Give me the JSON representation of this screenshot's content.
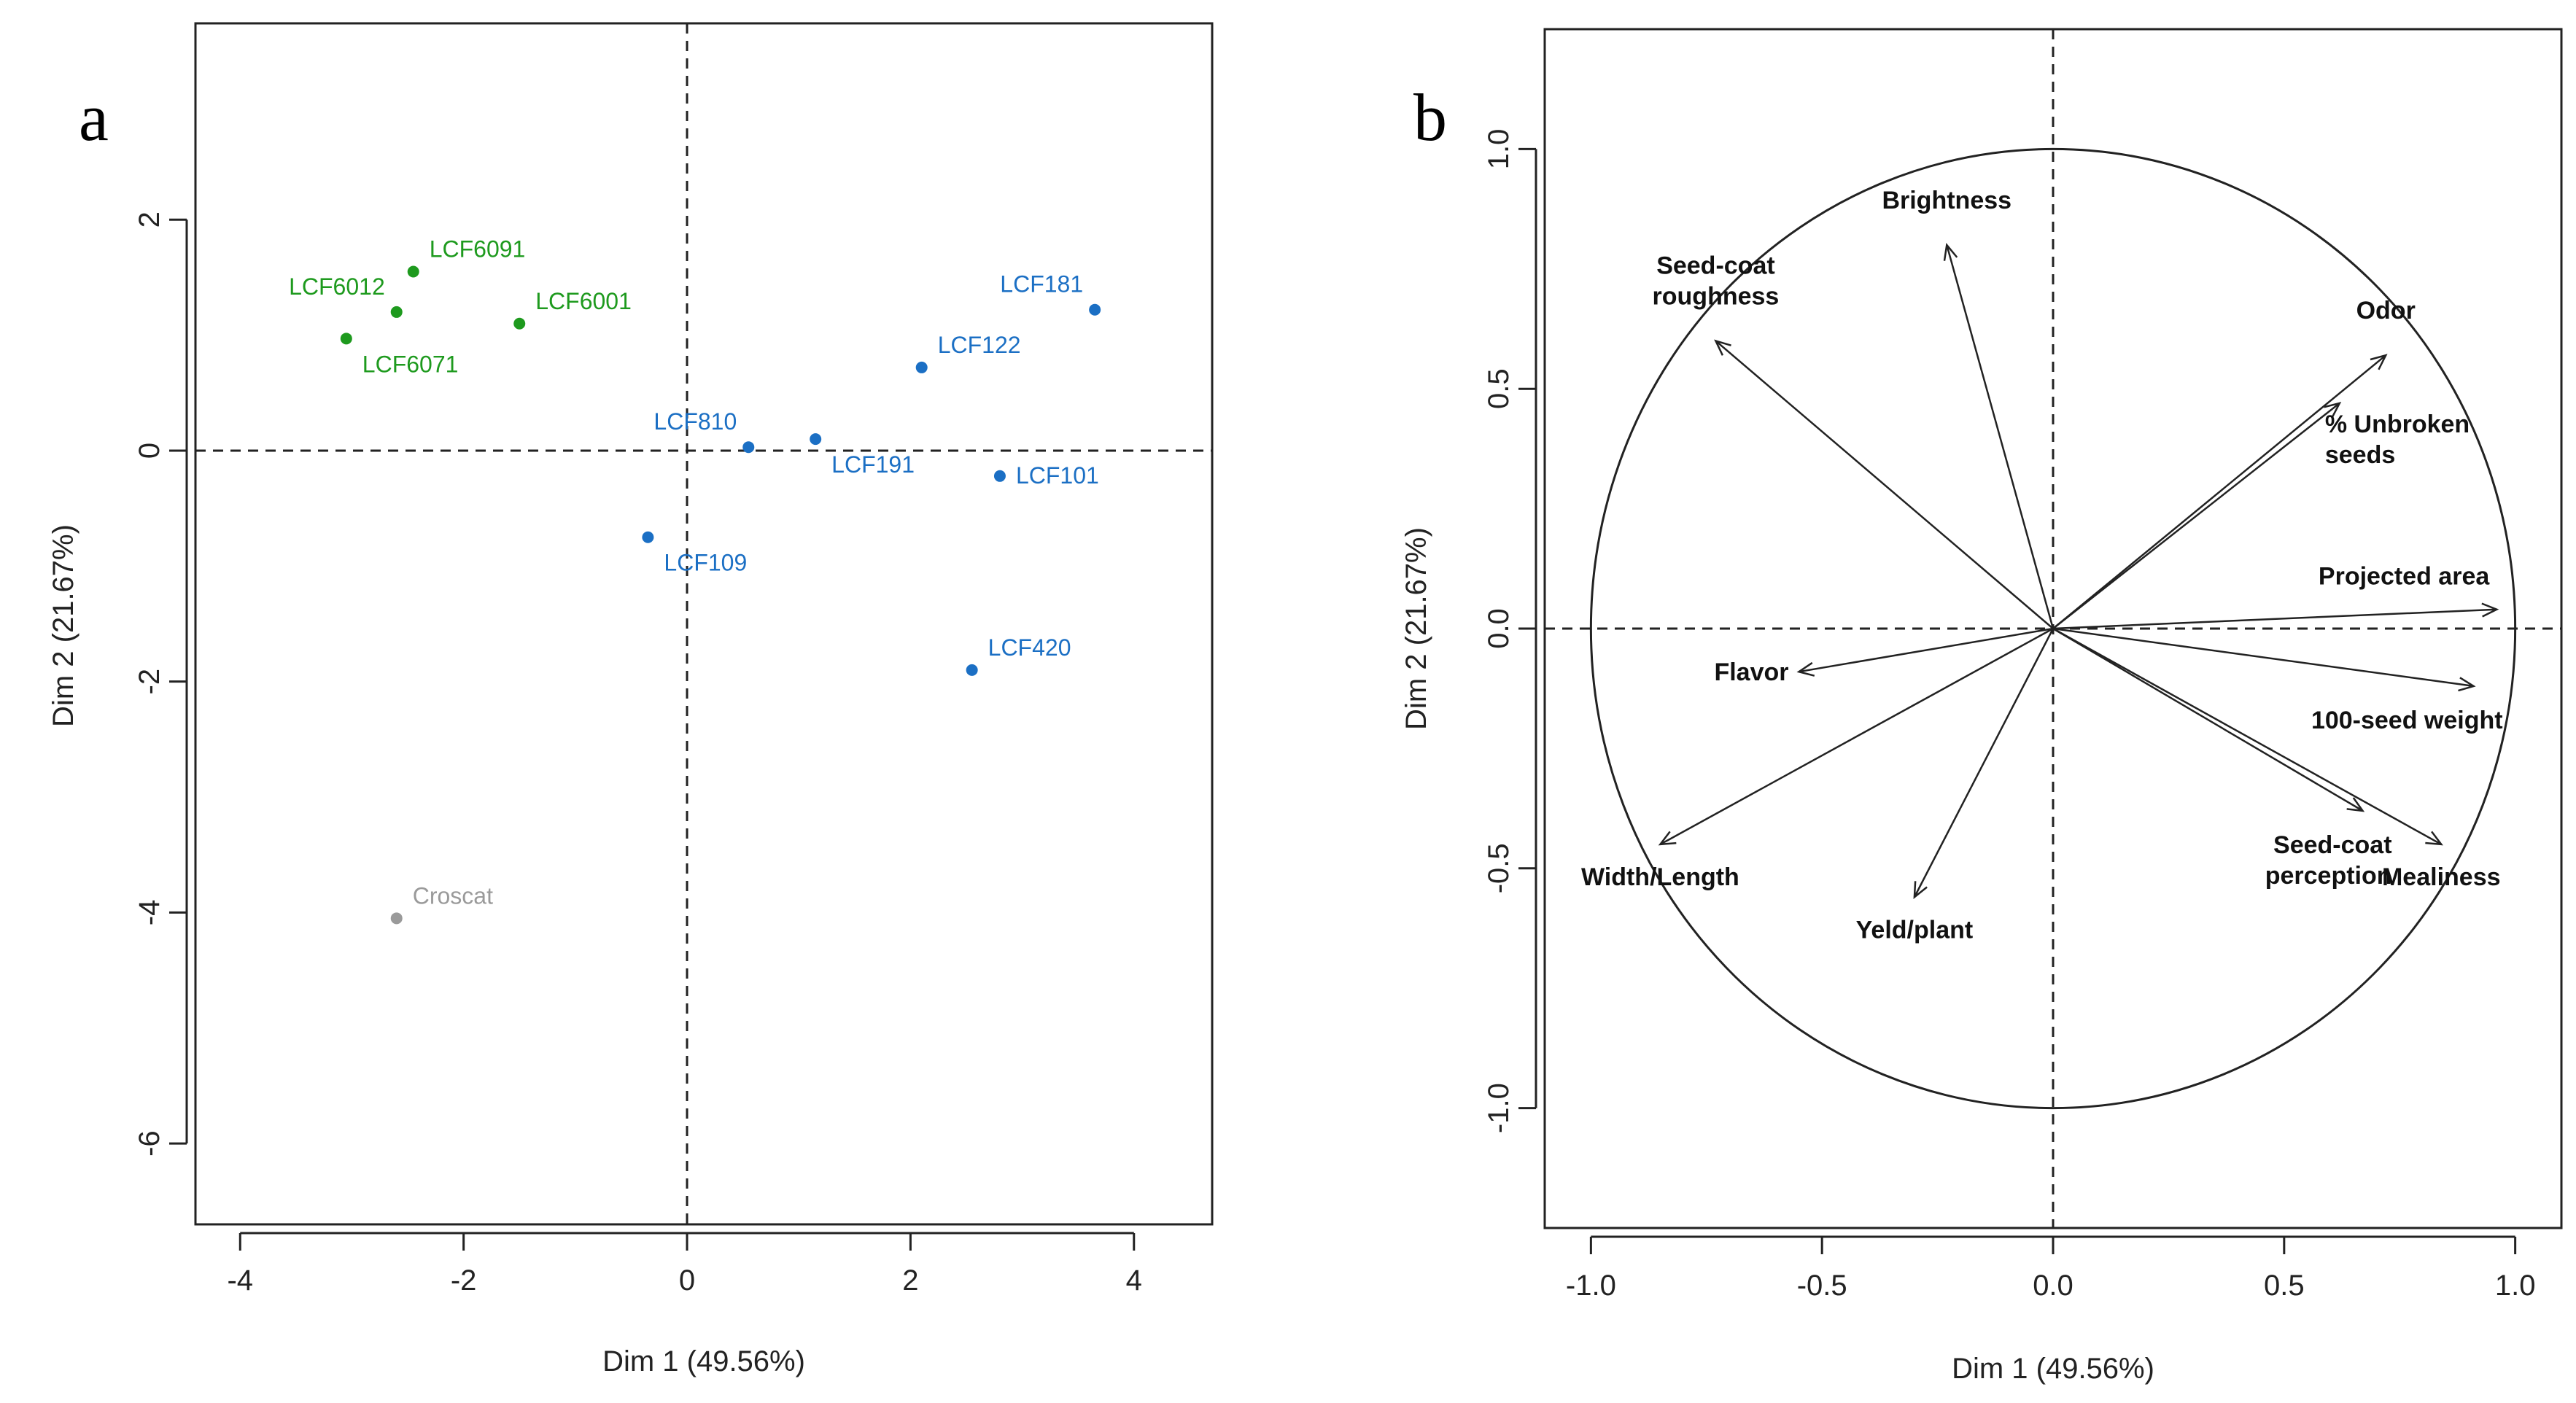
{
  "chart_data": [
    {
      "panel": "a",
      "type": "scatter",
      "title": "",
      "xlabel": "Dim 1 (49.56%)",
      "ylabel": "Dim 2 (21.67%)",
      "xlim": [
        -4.4,
        4.7
      ],
      "ylim": [
        -6.7,
        3.7
      ],
      "xticks": [
        -4,
        -2,
        0,
        2,
        4
      ],
      "yticks": [
        2,
        0,
        -2,
        -4,
        -6
      ],
      "colors": {
        "green": "#1e9a1e",
        "blue": "#1b6fc4",
        "gray": "#9a9a9a"
      },
      "points": [
        {
          "label": "LCF6091",
          "x": -2.45,
          "y": 1.55,
          "color": "#1e9a1e",
          "pos": "upper-right"
        },
        {
          "label": "LCF6012",
          "x": -2.6,
          "y": 1.2,
          "color": "#1e9a1e",
          "pos": "upper-left"
        },
        {
          "label": "LCF6001",
          "x": -1.5,
          "y": 1.1,
          "color": "#1e9a1e",
          "pos": "upper-right"
        },
        {
          "label": "LCF6071",
          "x": -3.05,
          "y": 0.97,
          "color": "#1e9a1e",
          "pos": "lower-right"
        },
        {
          "label": "LCF181",
          "x": 3.65,
          "y": 1.22,
          "color": "#1b6fc4",
          "pos": "upper-left"
        },
        {
          "label": "LCF122",
          "x": 2.1,
          "y": 0.72,
          "color": "#1b6fc4",
          "pos": "upper-right"
        },
        {
          "label": "LCF810",
          "x": 0.55,
          "y": 0.03,
          "color": "#1b6fc4",
          "pos": "upper-left"
        },
        {
          "label": "LCF191",
          "x": 1.15,
          "y": 0.1,
          "color": "#1b6fc4",
          "pos": "lower-right"
        },
        {
          "label": "LCF101",
          "x": 2.8,
          "y": -0.22,
          "color": "#1b6fc4",
          "pos": "right"
        },
        {
          "label": "LCF109",
          "x": -0.35,
          "y": -0.75,
          "color": "#1b6fc4",
          "pos": "lower-right"
        },
        {
          "label": "LCF420",
          "x": 2.55,
          "y": -1.9,
          "color": "#1b6fc4",
          "pos": "upper-right"
        },
        {
          "label": "Croscat",
          "x": -2.6,
          "y": -4.05,
          "color": "#9a9a9a",
          "pos": "upper-right"
        }
      ]
    },
    {
      "panel": "b",
      "type": "biplot",
      "title": "",
      "xlabel": "Dim 1 (49.56%)",
      "ylabel": "Dim 2 (21.67%)",
      "xlim": [
        -1.1,
        1.1
      ],
      "ylim": [
        -1.25,
        1.25
      ],
      "xticks": [
        -1.0,
        -0.5,
        0.0,
        0.5,
        1.0
      ],
      "xtick_labels": [
        "-1.0",
        "-0.5",
        "0.0",
        "0.5",
        "1.0"
      ],
      "yticks": [
        1.0,
        0.5,
        0.0,
        -0.5,
        -1.0
      ],
      "ytick_labels": [
        "1.0",
        "0.5",
        "0.0",
        "-0.5",
        "-1.0"
      ],
      "circle_radius": 1.0,
      "vectors": [
        {
          "name": "Brightness",
          "lines": [
            "Brightness"
          ],
          "x": -0.23,
          "y": 0.8,
          "label_pos": "above"
        },
        {
          "name": "Seed-coat roughness",
          "lines": [
            "Seed-coat",
            "roughness"
          ],
          "x": -0.73,
          "y": 0.6,
          "label_pos": "above"
        },
        {
          "name": "Odor",
          "lines": [
            "Odor"
          ],
          "x": 0.72,
          "y": 0.57,
          "label_pos": "above"
        },
        {
          "name": "% Unbroken seeds",
          "lines": [
            "% Unbroken",
            "seeds"
          ],
          "x": 0.62,
          "y": 0.47,
          "label_pos": "right-below"
        },
        {
          "name": "Projected area",
          "lines": [
            "Projected area"
          ],
          "x": 0.96,
          "y": 0.04,
          "label_pos": "above-left"
        },
        {
          "name": "100-seed weight",
          "lines": [
            "100-seed weight"
          ],
          "x": 0.91,
          "y": -0.12,
          "label_pos": "below-left"
        },
        {
          "name": "Flavor",
          "lines": [
            "Flavor"
          ],
          "x": -0.55,
          "y": -0.09,
          "label_pos": "left"
        },
        {
          "name": "Width/Length",
          "lines": [
            "Width/Length"
          ],
          "x": -0.85,
          "y": -0.45,
          "label_pos": "below"
        },
        {
          "name": "Yeld/plant",
          "lines": [
            "Yeld/plant"
          ],
          "x": -0.3,
          "y": -0.56,
          "label_pos": "below"
        },
        {
          "name": "Seed-coat perception",
          "lines": [
            "Seed-coat",
            "perception"
          ],
          "x": 0.67,
          "y": -0.38,
          "label_pos": "below-left"
        },
        {
          "name": "Mealiness",
          "lines": [
            "Mealiness"
          ],
          "x": 0.84,
          "y": -0.45,
          "label_pos": "below"
        }
      ]
    }
  ],
  "panel_labels": {
    "a": "a",
    "b": "b"
  }
}
